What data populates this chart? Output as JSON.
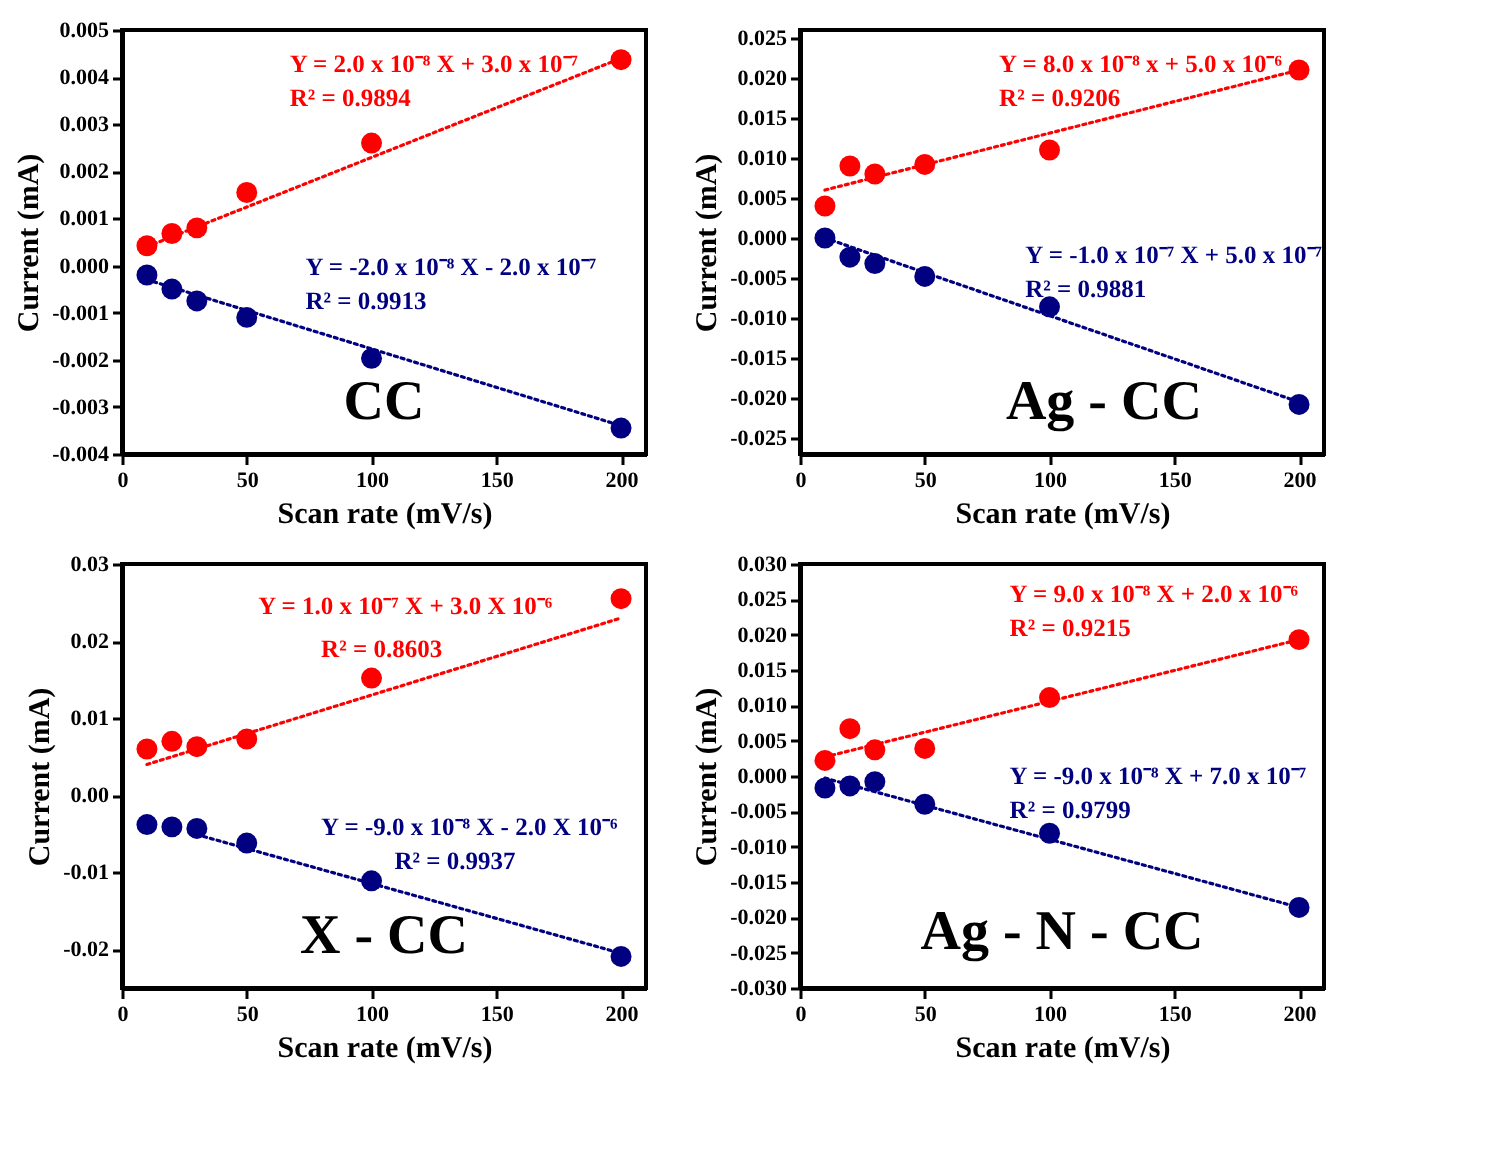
{
  "chart_data": [
    {
      "type": "scatter",
      "x": [
        10,
        20,
        30,
        50,
        100,
        200
      ],
      "xlabel": "Scan rate (mV/s)",
      "ylabel": "Current (mA)",
      "grid": false,
      "xlim": [
        0,
        210
      ],
      "xticks": [
        0,
        50,
        100,
        150,
        200
      ],
      "ylim": [
        -0.004,
        0.005
      ],
      "yticks": [
        -0.004,
        -0.003,
        -0.002,
        -0.001,
        {
          "value": 0,
          "label": "0.000"
        },
        0.001,
        0.002,
        0.003,
        0.004,
        0.005
      ],
      "series": [
        {
          "marker": "circle",
          "color": "#ff0000",
          "values": [
            0.00042,
            0.00068,
            0.0008,
            0.00155,
            0.0026,
            0.00437
          ]
        },
        {
          "marker": "circle",
          "color": "#000080",
          "values": [
            -0.0002,
            -0.0005,
            -0.00075,
            -0.0011,
            -0.00197,
            -0.00345
          ]
        },
        {
          "type": "line",
          "line_style": "dotted",
          "color": "#ff0000",
          "x": [
            10,
            200
          ],
          "values": [
            0.0004,
            0.0044
          ]
        },
        {
          "type": "line",
          "line_style": "dotted",
          "color": "#000080",
          "x": [
            10,
            200
          ],
          "values": [
            -0.0003,
            -0.0034
          ]
        }
      ],
      "annotations": [
        "Y = 2.0 x 10⁻⁸ X + 3.0 x 10⁻⁷",
        "R² = 0.9894",
        "Y = -2.0 x 10⁻⁸ X - 2.0 x 10⁻⁷",
        "R² = 0.9913",
        "CC"
      ]
    },
    {
      "type": "scatter",
      "x": [
        10,
        20,
        30,
        50,
        100,
        200
      ],
      "xlabel": "Scan rate (mV/s)",
      "ylabel": "Current (mA)",
      "grid": false,
      "xlim": [
        0,
        210
      ],
      "xticks": [
        0,
        50,
        100,
        150,
        200
      ],
      "ylim": [
        -0.027,
        0.026
      ],
      "yticks": [
        -0.025,
        {
          "value": -0.02,
          "label": "-0.020"
        },
        -0.015,
        {
          "value": -0.01,
          "label": "-0.010"
        },
        -0.005,
        {
          "value": 0,
          "label": "0.000"
        },
        0.005,
        {
          "value": 0.01,
          "label": "0.010"
        },
        0.015,
        {
          "value": 0.02,
          "label": "0.020"
        },
        0.025
      ],
      "series": [
        {
          "marker": "circle",
          "color": "#ff0000",
          "values": [
            0.004,
            0.009,
            0.008,
            0.0092,
            0.011,
            0.021
          ]
        },
        {
          "marker": "circle",
          "color": "#000080",
          "values": [
            0.0,
            -0.0024,
            -0.0032,
            -0.0048,
            -0.0086,
            -0.0208
          ]
        },
        {
          "type": "line",
          "line_style": "dotted",
          "color": "#ff0000",
          "x": [
            10,
            200
          ],
          "values": [
            0.006,
            0.021
          ]
        },
        {
          "type": "line",
          "line_style": "dotted",
          "color": "#000080",
          "x": [
            10,
            200
          ],
          "values": [
            0.0,
            -0.0205
          ]
        }
      ],
      "annotations": [
        "Y = 8.0 x 10⁻⁸ x + 5.0 x 10⁻⁶",
        "R² = 0.9206",
        "Y = -1.0 x 10⁻⁷ X + 5.0 x 10⁻⁷",
        "R² = 0.9881",
        "Ag - CC"
      ]
    },
    {
      "type": "scatter",
      "x": [
        10,
        20,
        30,
        50,
        100,
        200
      ],
      "xlabel": "Scan rate (mV/s)",
      "ylabel": "Current (mA)",
      "grid": false,
      "xlim": [
        0,
        210
      ],
      "xticks": [
        0,
        50,
        100,
        150,
        200
      ],
      "ylim": [
        -0.025,
        0.03
      ],
      "yticks": [
        -0.02,
        -0.01,
        {
          "value": 0,
          "label": "0.00"
        },
        0.01,
        0.02,
        0.03
      ],
      "series": [
        {
          "marker": "circle",
          "color": "#ff0000",
          "values": [
            0.006,
            0.007,
            0.0063,
            0.0073,
            0.0152,
            0.0255
          ]
        },
        {
          "marker": "circle",
          "color": "#000080",
          "values": [
            -0.0038,
            -0.0041,
            -0.0043,
            -0.0062,
            -0.0111,
            -0.0209
          ]
        },
        {
          "type": "line",
          "line_style": "dotted",
          "color": "#ff0000",
          "x": [
            10,
            200
          ],
          "values": [
            0.004,
            0.023
          ]
        },
        {
          "type": "line",
          "line_style": "dotted",
          "color": "#000080",
          "x": [
            30,
            200
          ],
          "values": [
            -0.0051,
            -0.0205
          ]
        }
      ],
      "annotations": [
        "Y = 1.0 x 10⁻⁷ X + 3.0 X 10⁻⁶",
        "R² = 0.8603",
        "Y = -9.0 x 10⁻⁸ X - 2.0 X 10⁻⁶",
        "R² = 0.9937",
        "X - CC"
      ]
    },
    {
      "type": "scatter",
      "x": [
        10,
        20,
        30,
        50,
        100,
        200
      ],
      "xlabel": "Scan rate (mV/s)",
      "ylabel": "Current (mA)",
      "grid": false,
      "xlim": [
        0,
        210
      ],
      "xticks": [
        0,
        50,
        100,
        150,
        200
      ],
      "ylim": [
        -0.03,
        0.03
      ],
      "yticks": [
        {
          "value": -0.03,
          "label": "-0.030"
        },
        -0.025,
        {
          "value": -0.02,
          "label": "-0.020"
        },
        -0.015,
        {
          "value": -0.01,
          "label": "-0.010"
        },
        -0.005,
        {
          "value": 0,
          "label": "0.000"
        },
        0.005,
        {
          "value": 0.01,
          "label": "0.010"
        },
        0.015,
        {
          "value": 0.02,
          "label": "0.020"
        },
        0.025,
        {
          "value": 0.03,
          "label": "0.030"
        }
      ],
      "series": [
        {
          "marker": "circle",
          "color": "#ff0000",
          "values": [
            0.0022,
            0.0067,
            0.0037,
            0.0039,
            0.0111,
            0.0193
          ]
        },
        {
          "marker": "circle",
          "color": "#000080",
          "values": [
            -0.0017,
            -0.0014,
            -0.0008,
            -0.004,
            -0.0081,
            -0.0186
          ]
        },
        {
          "type": "line",
          "line_style": "dotted",
          "color": "#ff0000",
          "x": [
            10,
            200
          ],
          "values": [
            0.0027,
            0.0193
          ]
        },
        {
          "type": "line",
          "line_style": "dotted",
          "color": "#000080",
          "x": [
            10,
            200
          ],
          "values": [
            -0.0003,
            -0.0186
          ]
        }
      ],
      "annotations": [
        "Y = 9.0 x 10⁻⁸ X + 2.0 x 10⁻⁶",
        "R² = 0.9215",
        "Y = -9.0 x 10⁻⁸ X + 7.0 x 10⁻⁷",
        "R² = 0.9799",
        "Ag - N - CC"
      ]
    }
  ]
}
